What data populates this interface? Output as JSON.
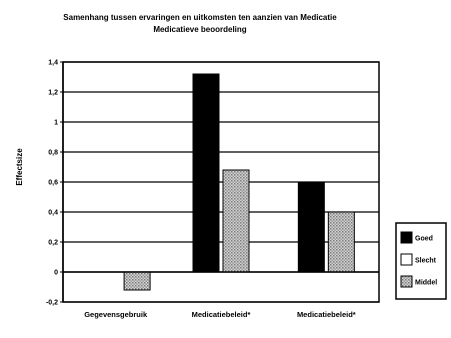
{
  "chart_data": {
    "type": "bar",
    "title": "Samenhang tussen ervaringen en uitkomsten ten aanzien van Medicatie",
    "subtitle": "Medicatieve beoordeling",
    "xlabel": "",
    "ylabel": "Effectsize",
    "ylim": [
      -0.2,
      1.4
    ],
    "ytick_values": [
      -0.2,
      0,
      0.2,
      0.4,
      0.6,
      0.8,
      1,
      1.2,
      1.4
    ],
    "ytick_labels": [
      "-0,2",
      "0",
      "0,2",
      "0,4",
      "0,6",
      "0,8",
      "1",
      "1,2",
      "1,4"
    ],
    "grid": "horizontal",
    "legend_position": "right",
    "categories": [
      "Gegevensgebruik",
      "Medicatiebeleid*",
      "Medicatiebeleid*"
    ],
    "series": [
      {
        "name": "Goed",
        "color": "#000000",
        "pattern": "solid",
        "values": [
          null,
          1.32,
          0.6
        ]
      },
      {
        "name": "Slecht",
        "color": "#ffffff",
        "pattern": "none",
        "values": [
          null,
          null,
          null
        ]
      },
      {
        "name": "Middel",
        "color": "#bdbdbd",
        "pattern": "dots",
        "values": [
          -0.12,
          0.68,
          0.4
        ]
      }
    ]
  }
}
